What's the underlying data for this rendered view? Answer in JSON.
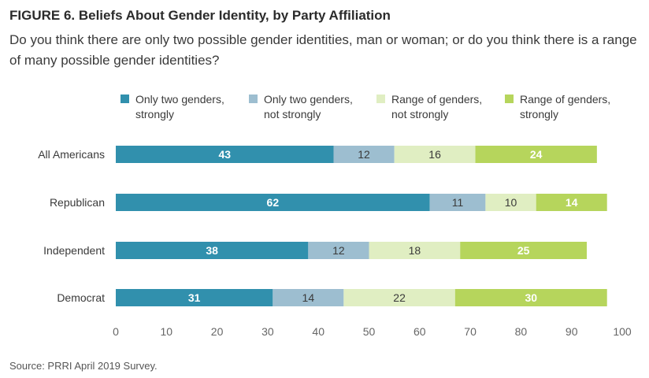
{
  "figure": {
    "title": "FIGURE 6. Beliefs About Gender Identity, by Party Affiliation",
    "subtitle": "Do you think there are only two possible gender identities, man or woman; or do you think there is a range of many possible gender identities?",
    "source": "Source: PRRI April 2019 Survey."
  },
  "chart_data": {
    "type": "bar",
    "orientation": "horizontal",
    "stacked": true,
    "categories": [
      "All Americans",
      "Republican",
      "Independent",
      "Democrat"
    ],
    "series": [
      {
        "name": "Only two genders, strongly",
        "legend_lines": [
          "Only two genders,",
          "strongly"
        ],
        "color": "#3190ad",
        "label_color": "#ffffff",
        "label_bold": true,
        "values": [
          43,
          62,
          38,
          31
        ]
      },
      {
        "name": "Only two genders, not strongly",
        "legend_lines": [
          "Only two genders,",
          "not strongly"
        ],
        "color": "#9dbed0",
        "label_color": "#3a3a3a",
        "label_bold": false,
        "values": [
          12,
          11,
          12,
          14
        ]
      },
      {
        "name": "Range of genders, not strongly",
        "legend_lines": [
          "Range of genders,",
          "not strongly"
        ],
        "color": "#e0eec2",
        "label_color": "#3a3a3a",
        "label_bold": false,
        "values": [
          16,
          10,
          18,
          22
        ]
      },
      {
        "name": "Range of genders, strongly",
        "legend_lines": [
          "Range of genders,",
          "strongly"
        ],
        "color": "#b6d55c",
        "label_color": "#ffffff",
        "label_bold": true,
        "values": [
          24,
          14,
          25,
          30
        ]
      }
    ],
    "xlim": [
      0,
      100
    ],
    "xticks": [
      0,
      10,
      20,
      30,
      40,
      50,
      60,
      70,
      80,
      90,
      100
    ],
    "legend_position": "top",
    "grid": false
  }
}
